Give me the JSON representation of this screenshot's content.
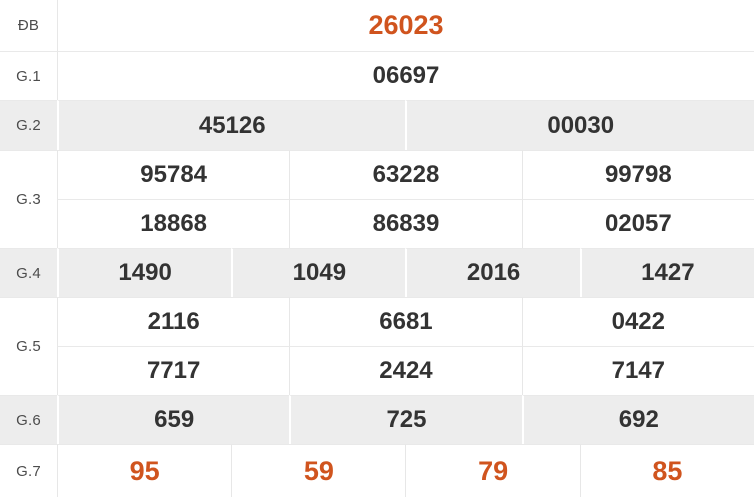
{
  "table": {
    "name": "lottery-results",
    "colors": {
      "highlight": "#d0541e",
      "value_text": "#333333",
      "label_text": "#4c4c4c",
      "shaded_row_bg": "#ededed",
      "border": "#e9e9e9"
    },
    "prizes": [
      {
        "label": "ĐB",
        "highlight": true,
        "shaded": false,
        "rows": [
          [
            "26023"
          ]
        ]
      },
      {
        "label": "G.1",
        "highlight": false,
        "shaded": false,
        "rows": [
          [
            "06697"
          ]
        ]
      },
      {
        "label": "G.2",
        "highlight": false,
        "shaded": true,
        "rows": [
          [
            "45126",
            "00030"
          ]
        ]
      },
      {
        "label": "G.3",
        "highlight": false,
        "shaded": false,
        "rows": [
          [
            "95784",
            "63228",
            "99798"
          ],
          [
            "18868",
            "86839",
            "02057"
          ]
        ]
      },
      {
        "label": "G.4",
        "highlight": false,
        "shaded": true,
        "rows": [
          [
            "1490",
            "1049",
            "2016",
            "1427"
          ]
        ]
      },
      {
        "label": "G.5",
        "highlight": false,
        "shaded": false,
        "rows": [
          [
            "2116",
            "6681",
            "0422"
          ],
          [
            "7717",
            "2424",
            "7147"
          ]
        ]
      },
      {
        "label": "G.6",
        "highlight": false,
        "shaded": true,
        "rows": [
          [
            "659",
            "725",
            "692"
          ]
        ]
      },
      {
        "label": "G.7",
        "highlight": true,
        "shaded": false,
        "rows": [
          [
            "95",
            "59",
            "79",
            "85"
          ]
        ]
      }
    ]
  }
}
